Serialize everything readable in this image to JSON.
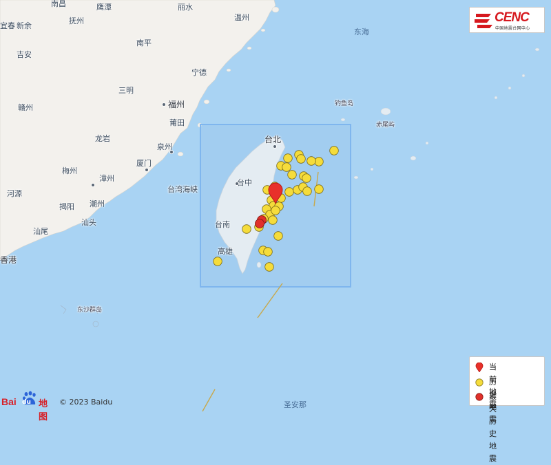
{
  "logo": {
    "brand": "CENC",
    "subtitle": "中国地震台网中心"
  },
  "sea_labels": [
    {
      "text": "东海"
    },
    {
      "text": "台湾海峡"
    },
    {
      "text": "钓鱼岛"
    },
    {
      "text": "赤尾屿"
    },
    {
      "text": "东沙群岛"
    },
    {
      "text": "圣安那"
    }
  ],
  "cities": [
    {
      "text": "南昌"
    },
    {
      "text": "鹰潭"
    },
    {
      "text": "丽水"
    },
    {
      "text": "温州"
    },
    {
      "text": "宜春"
    },
    {
      "text": "新余"
    },
    {
      "text": "抚州"
    },
    {
      "text": "吉安"
    },
    {
      "text": "南平"
    },
    {
      "text": "宁德"
    },
    {
      "text": "三明"
    },
    {
      "text": "赣州"
    },
    {
      "text": "福州"
    },
    {
      "text": "莆田"
    },
    {
      "text": "龙岩"
    },
    {
      "text": "泉州"
    },
    {
      "text": "厦门"
    },
    {
      "text": "梅州"
    },
    {
      "text": "漳州"
    },
    {
      "text": "河源"
    },
    {
      "text": "揭阳"
    },
    {
      "text": "潮州"
    },
    {
      "text": "汕头"
    },
    {
      "text": "汕尾"
    },
    {
      "text": "香港"
    },
    {
      "text": "台北"
    },
    {
      "text": "台中"
    },
    {
      "text": "台南"
    },
    {
      "text": "高雄"
    }
  ],
  "legend": {
    "current": "当前地震",
    "history": "历史地震",
    "max_history": "最大历史地震"
  },
  "footer": {
    "baidu_brand": "Bai",
    "baidu_du": "du",
    "baidu_map": "地图",
    "copyright": "© 2023 Baidu"
  },
  "colors": {
    "sea": "#a9d3f3",
    "land": "#f3f1ed",
    "taiwan_land": "#e4ecf2",
    "history_quake": "#f5dc3b",
    "max_quake": "#e0302a",
    "current_marker": "#e8302a",
    "box": "#7fb6ee"
  },
  "icons": {
    "current": "map-pin-icon",
    "history": "circle-icon",
    "max_history": "circle-icon"
  }
}
